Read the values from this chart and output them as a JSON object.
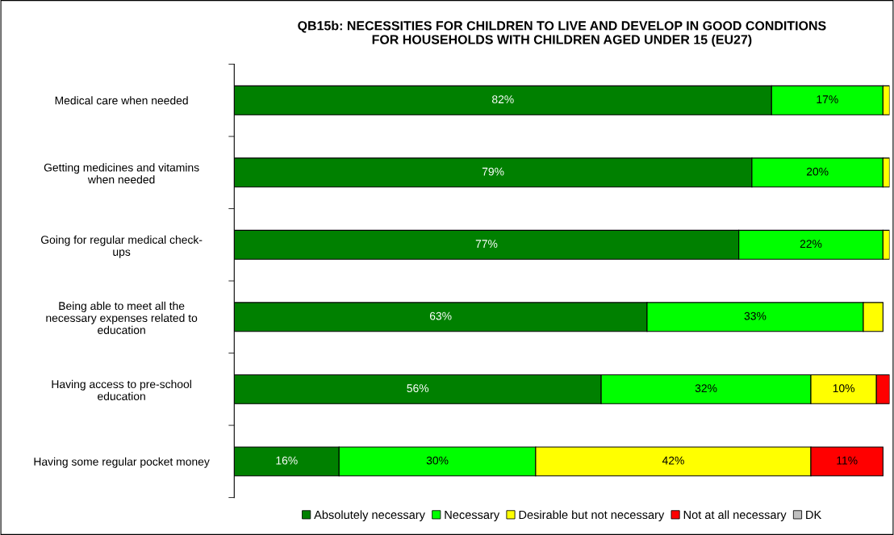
{
  "chart_data": {
    "type": "bar",
    "orientation": "horizontal",
    "stacked": true,
    "title": "QB15b: NECESSITIES FOR CHILDREN TO LIVE AND DEVELOP IN GOOD CONDITIONS\nFOR HOUSEHOLDS WITH CHILDREN AGED UNDER 15 (EU27)",
    "categories": [
      "Medical care when needed",
      "Getting medicines and vitamins\nwhen needed",
      "Going for regular medical check-\nups",
      "Being able to meet all the\nnecessary expenses related to\neducation",
      "Having access to pre-school\neducation",
      "Having some regular pocket money"
    ],
    "xlim": [
      0,
      100
    ],
    "tick_labels": "y",
    "grid": false,
    "legend": "bottom",
    "series": [
      {
        "name": "Absolutely necessary",
        "color": "#008000",
        "values": [
          82,
          79,
          77,
          63,
          56,
          16
        ],
        "value_labels": [
          "82%",
          "79%",
          "77%",
          "63%",
          "56%",
          "16%"
        ]
      },
      {
        "name": "Necessary",
        "color": "#00ff00",
        "values": [
          17,
          20,
          22,
          33,
          32,
          30
        ],
        "value_labels": [
          "17%",
          "20%",
          "22%",
          "33%",
          "32%",
          "30%"
        ]
      },
      {
        "name": "Desirable but not necessary",
        "color": "#ffff00",
        "values": [
          1,
          1,
          1,
          3,
          10,
          42
        ],
        "value_labels": [
          null,
          null,
          null,
          null,
          "10%",
          "42%"
        ]
      },
      {
        "name": "Not at all necessary",
        "color": "#ff0000",
        "values": [
          null,
          null,
          null,
          null,
          2,
          11
        ],
        "value_labels": [
          null,
          null,
          null,
          null,
          null,
          "11%"
        ]
      },
      {
        "name": "DK",
        "color": "#c0c0c0",
        "values": [
          null,
          null,
          null,
          null,
          null,
          null
        ]
      }
    ]
  }
}
